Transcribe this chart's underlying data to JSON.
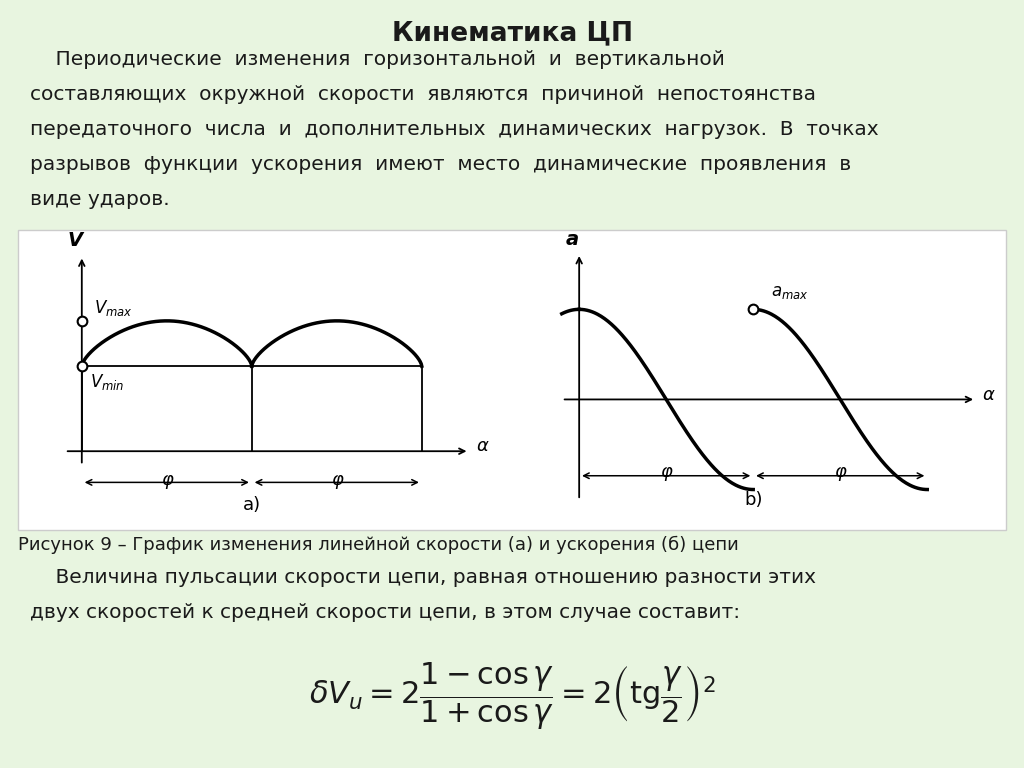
{
  "title": "Кинематика ЦП",
  "background_color": "#e8f5e0",
  "text_color": "#1a1a1a",
  "fig_caption": "Рисунок 9 – График изменения линейной скорости (а) и ускорения (б) цепи",
  "para1_lines": [
    "    Периодические  изменения  горизонтальной  и  вертикальной",
    "составляющих  окружной  скорости  являются  причиной  непостоянства",
    "передаточного  числа  и  дополнительных  динамических  нагрузок.  В  точках",
    "разрывов  функции  ускорения  имеют  место  динамические  проявления  в",
    "виде ударов."
  ],
  "para2_lines": [
    "    Величина пульсации скорости цепи, равная отношению разности этих",
    "двух скоростей к средней скорости цепи, в этом случае составит:"
  ]
}
